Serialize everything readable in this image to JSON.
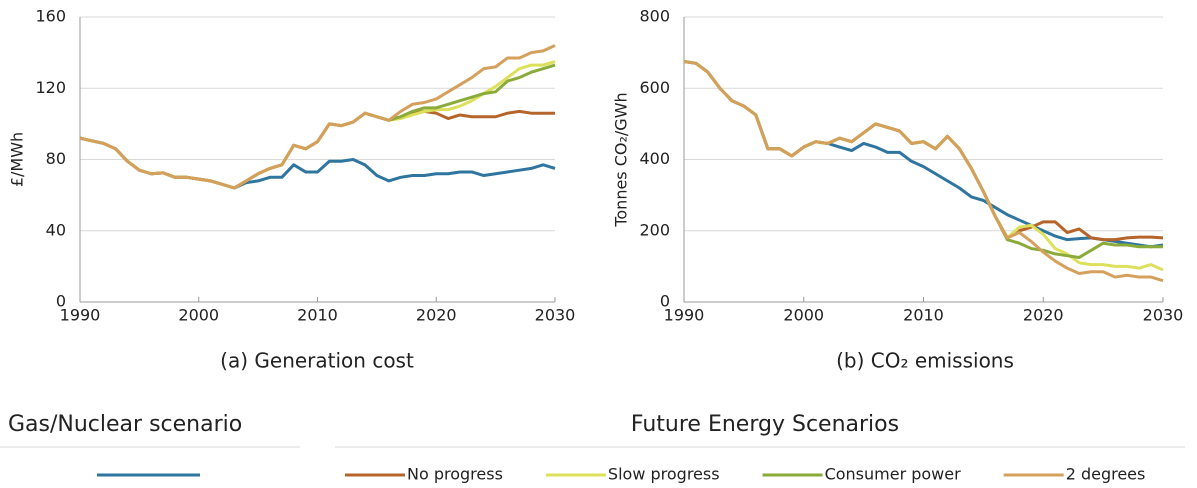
{
  "chart_data": [
    {
      "type": "line",
      "caption": "(a) Generation cost",
      "y_label": "£/MWh",
      "x": [
        1990,
        1991,
        1992,
        1993,
        1994,
        1995,
        1996,
        1997,
        1998,
        1999,
        2000,
        2001,
        2002,
        2003,
        2004,
        2005,
        2006,
        2007,
        2008,
        2009,
        2010,
        2011,
        2012,
        2013,
        2014,
        2015,
        2016,
        2017,
        2018,
        2019,
        2020,
        2021,
        2022,
        2023,
        2024,
        2025,
        2026,
        2027,
        2028,
        2029,
        2030
      ],
      "xlim": [
        1990,
        2030
      ],
      "xticks": [
        1990,
        2000,
        2010,
        2020,
        2030
      ],
      "ylim": [
        0,
        160
      ],
      "yticks": [
        0,
        40,
        80,
        120,
        160
      ],
      "grid": true,
      "series": [
        {
          "group": "Gas/Nuclear scenario",
          "color": "#2e75a0",
          "values": [
            92,
            90.5,
            89,
            86,
            79,
            74,
            72,
            72.5,
            70,
            70,
            69,
            68,
            66,
            64,
            67,
            68,
            70,
            70,
            77,
            73,
            73,
            79,
            79,
            80,
            77,
            71,
            68,
            70,
            71,
            71,
            72,
            72,
            73,
            73,
            71,
            72,
            73,
            74,
            75,
            77,
            75
          ]
        },
        {
          "group": "Future Energy Scenarios",
          "name": "No progress",
          "color": "#b5652a",
          "values": [
            92,
            90.5,
            89,
            86,
            79,
            74,
            72,
            72.5,
            70,
            70,
            69,
            68,
            66,
            64,
            68,
            72,
            75,
            77,
            88,
            86,
            90,
            100,
            99,
            101,
            106,
            104,
            102,
            104,
            106,
            107,
            106,
            103,
            105,
            104,
            104,
            104,
            106,
            107,
            106,
            106,
            106
          ]
        },
        {
          "group": "Future Energy Scenarios",
          "name": "Slow progress",
          "color": "#dce05a",
          "values": [
            92,
            90.5,
            89,
            86,
            79,
            74,
            72,
            72.5,
            70,
            70,
            69,
            68,
            66,
            64,
            68,
            72,
            75,
            77,
            88,
            86,
            90,
            100,
            99,
            101,
            106,
            104,
            102,
            103,
            105,
            107,
            108,
            108,
            110,
            113,
            117,
            121,
            126,
            131,
            133,
            133,
            135
          ]
        },
        {
          "group": "Future Energy Scenarios",
          "name": "Consumer power",
          "color": "#8aab3a",
          "values": [
            92,
            90.5,
            89,
            86,
            79,
            74,
            72,
            72.5,
            70,
            70,
            69,
            68,
            66,
            64,
            68,
            72,
            75,
            77,
            88,
            86,
            90,
            100,
            99,
            101,
            106,
            104,
            102,
            104,
            107,
            109,
            109,
            111,
            113,
            115,
            117,
            118,
            124,
            126,
            129,
            131,
            133
          ]
        },
        {
          "group": "Future Energy Scenarios",
          "name": "2 degrees",
          "color": "#d4a05c",
          "values": [
            92,
            90.5,
            89,
            86,
            79,
            74,
            72,
            72.5,
            70,
            70,
            69,
            68,
            66,
            64,
            68,
            72,
            75,
            77,
            88,
            86,
            90,
            100,
            99,
            101,
            106,
            104,
            102,
            107,
            111,
            112,
            114,
            118,
            122,
            126,
            131,
            132,
            137,
            137,
            140,
            141,
            144
          ]
        }
      ]
    },
    {
      "type": "line",
      "caption": "(b) CO₂ emissions",
      "y_label": "Tonnes CO₂/GWh",
      "x": [
        1990,
        1991,
        1992,
        1993,
        1994,
        1995,
        1996,
        1997,
        1998,
        1999,
        2000,
        2001,
        2002,
        2003,
        2004,
        2005,
        2006,
        2007,
        2008,
        2009,
        2010,
        2011,
        2012,
        2013,
        2014,
        2015,
        2016,
        2017,
        2018,
        2019,
        2020,
        2021,
        2022,
        2023,
        2024,
        2025,
        2026,
        2027,
        2028,
        2029,
        2030
      ],
      "xlim": [
        1990,
        2030
      ],
      "xticks": [
        1990,
        2000,
        2010,
        2020,
        2030
      ],
      "ylim": [
        0,
        800
      ],
      "yticks": [
        0,
        200,
        400,
        600,
        800
      ],
      "grid": true,
      "series": [
        {
          "color": "#2e75a0",
          "values": [
            675,
            670,
            645,
            600,
            565,
            550,
            525,
            430,
            430,
            410,
            435,
            450,
            445,
            435,
            425,
            445,
            435,
            420,
            420,
            395,
            380,
            360,
            340,
            320,
            295,
            285,
            265,
            245,
            230,
            215,
            200,
            185,
            175,
            178,
            180,
            175,
            170,
            165,
            160,
            155,
            160
          ]
        },
        {
          "color": "#b5652a",
          "values": [
            675,
            670,
            645,
            600,
            565,
            550,
            525,
            430,
            430,
            410,
            435,
            450,
            445,
            460,
            450,
            475,
            500,
            490,
            480,
            445,
            450,
            430,
            465,
            430,
            375,
            310,
            240,
            180,
            200,
            210,
            225,
            225,
            195,
            205,
            180,
            175,
            175,
            180,
            182,
            182,
            180
          ]
        },
        {
          "color": "#dce05a",
          "values": [
            675,
            670,
            645,
            600,
            565,
            550,
            525,
            430,
            430,
            410,
            435,
            450,
            445,
            460,
            450,
            475,
            500,
            490,
            480,
            445,
            450,
            430,
            465,
            430,
            375,
            310,
            240,
            180,
            210,
            215,
            190,
            150,
            135,
            110,
            105,
            105,
            100,
            100,
            95,
            105,
            90
          ]
        },
        {
          "color": "#8aab3a",
          "values": [
            675,
            670,
            645,
            600,
            565,
            550,
            525,
            430,
            430,
            410,
            435,
            450,
            445,
            460,
            450,
            475,
            500,
            490,
            480,
            445,
            450,
            430,
            465,
            430,
            375,
            310,
            240,
            175,
            165,
            150,
            145,
            135,
            130,
            125,
            145,
            165,
            160,
            160,
            155,
            155,
            155
          ]
        },
        {
          "color": "#d4a05c",
          "values": [
            675,
            670,
            645,
            600,
            565,
            550,
            525,
            430,
            430,
            410,
            435,
            450,
            445,
            460,
            450,
            475,
            500,
            490,
            480,
            445,
            450,
            430,
            465,
            430,
            375,
            310,
            240,
            180,
            195,
            170,
            140,
            115,
            95,
            80,
            85,
            85,
            70,
            75,
            70,
            70,
            60
          ]
        }
      ]
    }
  ]
}
